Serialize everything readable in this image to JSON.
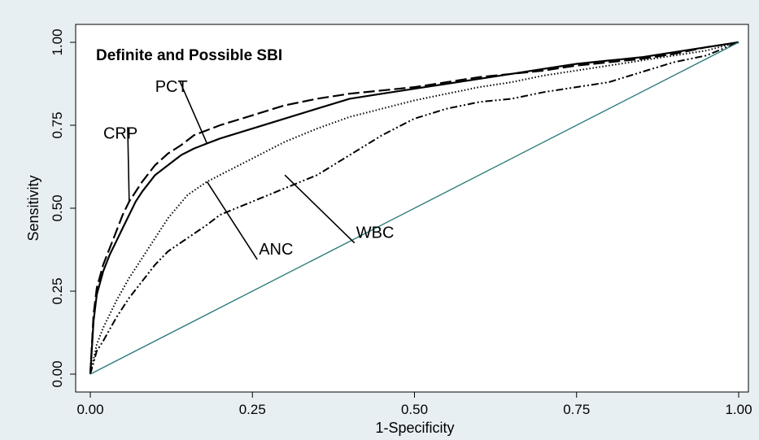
{
  "chart_data": {
    "type": "line",
    "title": "Definite and Possible SBI",
    "xlabel": "1-Specificity",
    "ylabel": "Sensitivity",
    "xlim": [
      0,
      1
    ],
    "ylim": [
      0,
      1
    ],
    "xticks": [
      "0.00",
      "0.25",
      "0.50",
      "0.75",
      "1.00"
    ],
    "yticks": [
      "0.00",
      "0.25",
      "0.50",
      "0.75",
      "1.00"
    ],
    "grid": false,
    "series": [
      {
        "name": "CRP",
        "style": "dashed",
        "color": "#000000",
        "x": [
          0,
          0.005,
          0.01,
          0.02,
          0.03,
          0.04,
          0.05,
          0.06,
          0.07,
          0.08,
          0.1,
          0.12,
          0.14,
          0.16,
          0.18,
          0.2,
          0.25,
          0.3,
          0.35,
          0.4,
          0.45,
          0.5,
          0.55,
          0.6,
          0.65,
          0.7,
          0.75,
          0.8,
          0.85,
          0.9,
          0.95,
          1.0
        ],
        "y": [
          0,
          0.18,
          0.26,
          0.33,
          0.38,
          0.43,
          0.48,
          0.52,
          0.55,
          0.58,
          0.63,
          0.665,
          0.69,
          0.72,
          0.735,
          0.75,
          0.78,
          0.81,
          0.83,
          0.845,
          0.855,
          0.865,
          0.88,
          0.895,
          0.905,
          0.915,
          0.93,
          0.94,
          0.95,
          0.965,
          0.985,
          1.0
        ]
      },
      {
        "name": "PCT",
        "style": "solid",
        "color": "#000000",
        "x": [
          0,
          0.005,
          0.01,
          0.02,
          0.03,
          0.04,
          0.05,
          0.06,
          0.07,
          0.08,
          0.1,
          0.12,
          0.14,
          0.16,
          0.18,
          0.2,
          0.25,
          0.3,
          0.35,
          0.4,
          0.45,
          0.5,
          0.55,
          0.6,
          0.65,
          0.7,
          0.75,
          0.8,
          0.85,
          0.9,
          0.95,
          1.0
        ],
        "y": [
          0,
          0.16,
          0.24,
          0.31,
          0.36,
          0.4,
          0.44,
          0.48,
          0.52,
          0.55,
          0.6,
          0.63,
          0.66,
          0.68,
          0.695,
          0.71,
          0.74,
          0.77,
          0.8,
          0.83,
          0.845,
          0.86,
          0.875,
          0.89,
          0.905,
          0.92,
          0.935,
          0.945,
          0.955,
          0.97,
          0.985,
          1.0
        ]
      },
      {
        "name": "ANC",
        "style": "dotted",
        "color": "#000000",
        "x": [
          0,
          0.01,
          0.02,
          0.04,
          0.06,
          0.08,
          0.1,
          0.12,
          0.15,
          0.18,
          0.2,
          0.25,
          0.3,
          0.35,
          0.4,
          0.45,
          0.5,
          0.55,
          0.6,
          0.65,
          0.7,
          0.75,
          0.8,
          0.85,
          0.9,
          0.95,
          1.0
        ],
        "y": [
          0,
          0.09,
          0.14,
          0.22,
          0.29,
          0.35,
          0.41,
          0.47,
          0.54,
          0.58,
          0.6,
          0.65,
          0.7,
          0.74,
          0.775,
          0.8,
          0.825,
          0.845,
          0.865,
          0.88,
          0.9,
          0.915,
          0.93,
          0.945,
          0.96,
          0.975,
          1.0
        ]
      },
      {
        "name": "WBC",
        "style": "dash-dot",
        "color": "#000000",
        "x": [
          0,
          0.01,
          0.02,
          0.04,
          0.06,
          0.08,
          0.1,
          0.12,
          0.15,
          0.18,
          0.2,
          0.25,
          0.3,
          0.35,
          0.4,
          0.45,
          0.5,
          0.55,
          0.6,
          0.65,
          0.7,
          0.75,
          0.8,
          0.85,
          0.9,
          0.95,
          1.0
        ],
        "y": [
          0,
          0.07,
          0.1,
          0.17,
          0.23,
          0.28,
          0.33,
          0.37,
          0.41,
          0.45,
          0.48,
          0.52,
          0.56,
          0.6,
          0.66,
          0.72,
          0.77,
          0.8,
          0.82,
          0.83,
          0.85,
          0.865,
          0.88,
          0.91,
          0.94,
          0.96,
          1.0
        ]
      },
      {
        "name": "",
        "style": "reference",
        "color": "#2e7d7a",
        "x": [
          0,
          1
        ],
        "y": [
          0,
          1
        ]
      }
    ],
    "annotations": [
      {
        "text": "CRP",
        "label_x": 0.02,
        "label_y": 0.71,
        "arrow_x": 0.06,
        "arrow_y": 0.52
      },
      {
        "text": "PCT",
        "label_x": 0.1,
        "label_y": 0.85,
        "arrow_x": 0.18,
        "arrow_y": 0.695
      },
      {
        "text": "ANC",
        "label_x": 0.26,
        "label_y": 0.36,
        "arrow_x": 0.18,
        "arrow_y": 0.58
      },
      {
        "text": "WBC",
        "label_x": 0.41,
        "label_y": 0.41,
        "arrow_x": 0.3,
        "arrow_y": 0.6
      }
    ]
  }
}
